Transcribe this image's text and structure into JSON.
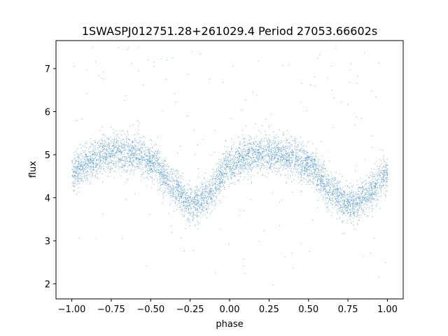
{
  "chart_data": {
    "type": "scatter",
    "title": "1SWASPJ012751.28+261029.4 Period 27053.66602s",
    "xlabel": "phase",
    "ylabel": "flux",
    "xlim": [
      -1.1,
      1.1
    ],
    "ylim": [
      1.65,
      7.65
    ],
    "xticks": [
      -1.0,
      -0.75,
      -0.5,
      -0.25,
      0.0,
      0.25,
      0.5,
      0.75,
      1.0
    ],
    "xtick_labels": [
      "−1.00",
      "−0.75",
      "−0.50",
      "−0.25",
      "0.00",
      "0.25",
      "0.50",
      "0.75",
      "1.00"
    ],
    "yticks": [
      2,
      3,
      4,
      5,
      6,
      7
    ],
    "ytick_labels": [
      "2",
      "3",
      "4",
      "5",
      "6",
      "7"
    ],
    "grid": false,
    "series": [
      {
        "color": "#1f77b4",
        "phase_range": [
          -1.0,
          1.0
        ],
        "profile": {
          "phase": [
            -1.0,
            -0.9,
            -0.75,
            -0.6,
            -0.5,
            -0.35,
            -0.25,
            -0.15,
            0.0,
            0.1,
            0.25,
            0.4,
            0.5,
            0.65,
            0.75,
            0.85,
            1.0
          ],
          "flux": [
            4.55,
            4.85,
            5.05,
            5.05,
            4.85,
            4.25,
            3.85,
            4.05,
            4.75,
            4.95,
            5.05,
            4.95,
            4.75,
            4.15,
            3.85,
            4.05,
            4.55
          ]
        },
        "band_halfwidth": 0.35,
        "outlier_range": [
          1.9,
          7.6
        ]
      }
    ]
  }
}
